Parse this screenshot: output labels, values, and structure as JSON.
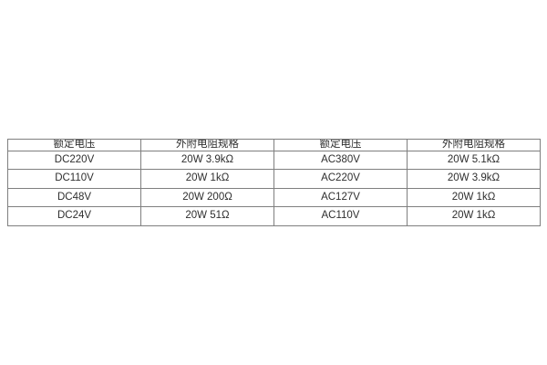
{
  "chart_data": {
    "type": "table",
    "title": "",
    "columns": [
      "额定电压",
      "外附电阻规格",
      "额定电压",
      "外附电阻规格"
    ],
    "rows": [
      [
        "DC220V",
        "20W 3.9kΩ",
        "AC380V",
        "20W 5.1kΩ"
      ],
      [
        "DC110V",
        "20W 1kΩ",
        "AC220V",
        "20W 3.9kΩ"
      ],
      [
        "DC48V",
        "20W 200Ω",
        "AC127V",
        "20W 1kΩ"
      ],
      [
        "DC24V",
        "20W 51Ω",
        "AC110V",
        "20W 1kΩ"
      ]
    ]
  },
  "colors": {
    "page_background": "#ffffff",
    "table_border": "#7f7f7f",
    "text": "#2e2e2e"
  }
}
